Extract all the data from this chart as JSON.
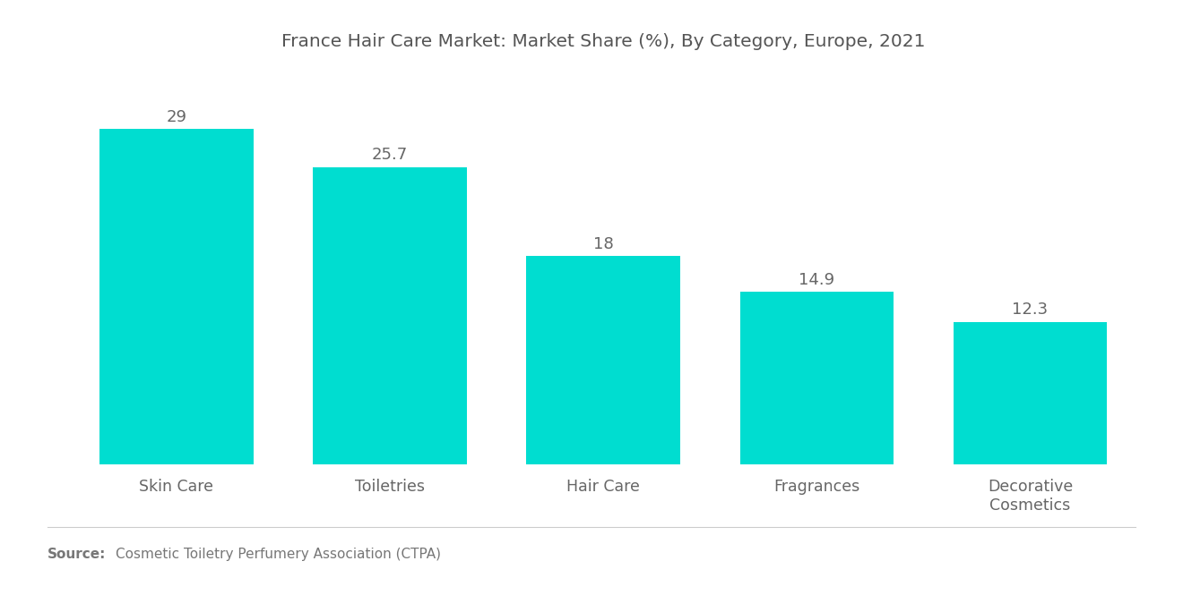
{
  "title": "France Hair Care Market: Market Share (%), By Category, Europe, 2021",
  "categories": [
    "Skin Care",
    "Toiletries",
    "Hair Care",
    "Fragrances",
    "Decorative\nCosmetics"
  ],
  "values": [
    29,
    25.7,
    18,
    14.9,
    12.3
  ],
  "bar_color": "#00DDD0",
  "background_color": "#ffffff",
  "title_color": "#555555",
  "label_color": "#666666",
  "source_bold": "Source:",
  "source_text": "Cosmetic Toiletry Perfumery Association (CTPA)",
  "ylim": [
    0,
    34
  ],
  "title_fontsize": 14.5,
  "value_fontsize": 13,
  "tick_fontsize": 12.5,
  "source_fontsize": 11,
  "bar_width": 0.72
}
